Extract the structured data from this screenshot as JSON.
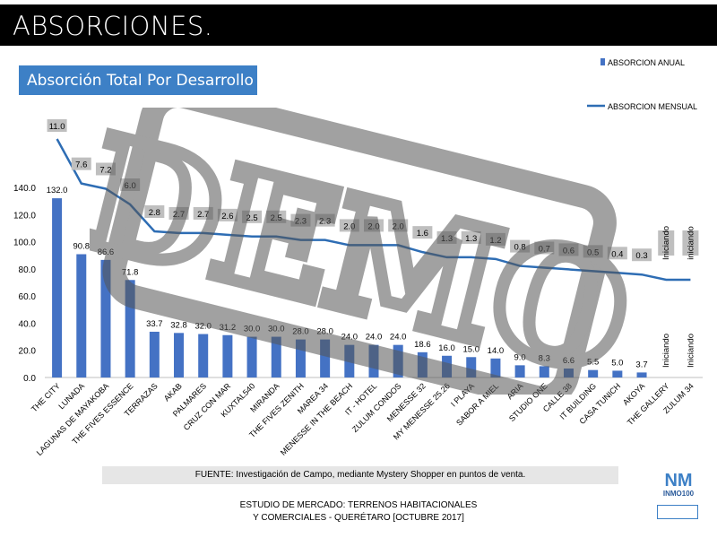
{
  "header": {
    "title": "ABSORCIONES."
  },
  "subtitle": "Absorción Total Por Desarrollo",
  "source": "FUENTE: Investigación de Campo, mediante Mystery Shopper en puntos de venta.",
  "footer": {
    "line1": "ESTUDIO DE MERCADO: TERRENOS HABITACIONALES",
    "line2": "Y COMERCIALES - QUERÉTARO [OCTUBRE 2017]"
  },
  "logo": {
    "text": "INMO100",
    "mark": "NM"
  },
  "watermark": "DEMO",
  "colors": {
    "bar": "#4472c4",
    "line": "#2e6db4",
    "label_bg": "#bfbfbf",
    "accent": "#3d80c6"
  },
  "chart_data": {
    "type": "bar",
    "categories": [
      "THE CITY",
      "LUNADA",
      "LAGUNAS DE MAYAKOBA",
      "THE FIVES  ESSENCE",
      "TERRAZAS",
      "AKAB",
      "PALMARES",
      "CRUZ CON MAR",
      "KUXTAL540",
      "MIRANDA",
      "THE FIVES ZENITH",
      "MAREA 34",
      "MENESSE IN THE BEACH",
      "IT - HOTEL",
      "ZULUM CONDOS",
      "MENESSE 32",
      "MY MENESSE 25.26",
      "I PLAYA",
      "SABOR A MIEL",
      "ARIA",
      "STUDIO ONE",
      "CALLE 38",
      "IT BUILDING",
      "CASA TUNICH",
      "AKOYA",
      "THE GALLERY",
      "ZULUM 34"
    ],
    "series": [
      {
        "name": "ABSORCION ANUAL",
        "type": "bar",
        "values": [
          132.0,
          90.8,
          86.6,
          71.8,
          33.7,
          32.8,
          32.0,
          31.2,
          30.0,
          30.0,
          28.0,
          28.0,
          24.0,
          24.0,
          24.0,
          18.6,
          16.0,
          15.0,
          14.0,
          9.0,
          8.3,
          6.6,
          5.5,
          5.0,
          3.7,
          null,
          null
        ],
        "labels": [
          "132.0",
          "90.8",
          "86.6",
          "71.8",
          "33.7",
          "32.8",
          "32.0",
          "31.2",
          "30.0",
          "30.0",
          "28.0",
          "28.0",
          "24.0",
          "24.0",
          "24.0",
          "18.6",
          "16.0",
          "15.0",
          "14.0",
          "9.0",
          "8.3",
          "6.6",
          "5.5",
          "5.0",
          "3.7",
          "Iniciando",
          "Iniciando"
        ]
      },
      {
        "name": "ABSORCION MENSUAL",
        "type": "line",
        "values": [
          11.0,
          7.6,
          7.2,
          6.0,
          2.8,
          2.7,
          2.7,
          2.6,
          2.5,
          2.5,
          2.3,
          2.3,
          2.0,
          2.0,
          2.0,
          1.6,
          1.3,
          1.3,
          1.2,
          0.8,
          0.7,
          0.6,
          0.5,
          0.4,
          0.3,
          0,
          0
        ],
        "labels": [
          "11.0",
          "7.6",
          "7.2",
          "6.0",
          "2.8",
          "2.7",
          "2.7",
          "2.6",
          "2.5",
          "2.5",
          "2.3",
          "2.3",
          "2.0",
          "2.0",
          "2.0",
          "1.6",
          "1.3",
          "1.3",
          "1.2",
          "0.8",
          "0.7",
          "0.6",
          "0.5",
          "0.4",
          "0.3",
          "Iniciando",
          "iniciando"
        ]
      }
    ],
    "yticks": [
      "0.0",
      "20.0",
      "40.0",
      "60.0",
      "80.0",
      "100.0",
      "120.0",
      "140.0"
    ],
    "ylim": [
      0,
      140
    ],
    "legend": "top-right"
  }
}
